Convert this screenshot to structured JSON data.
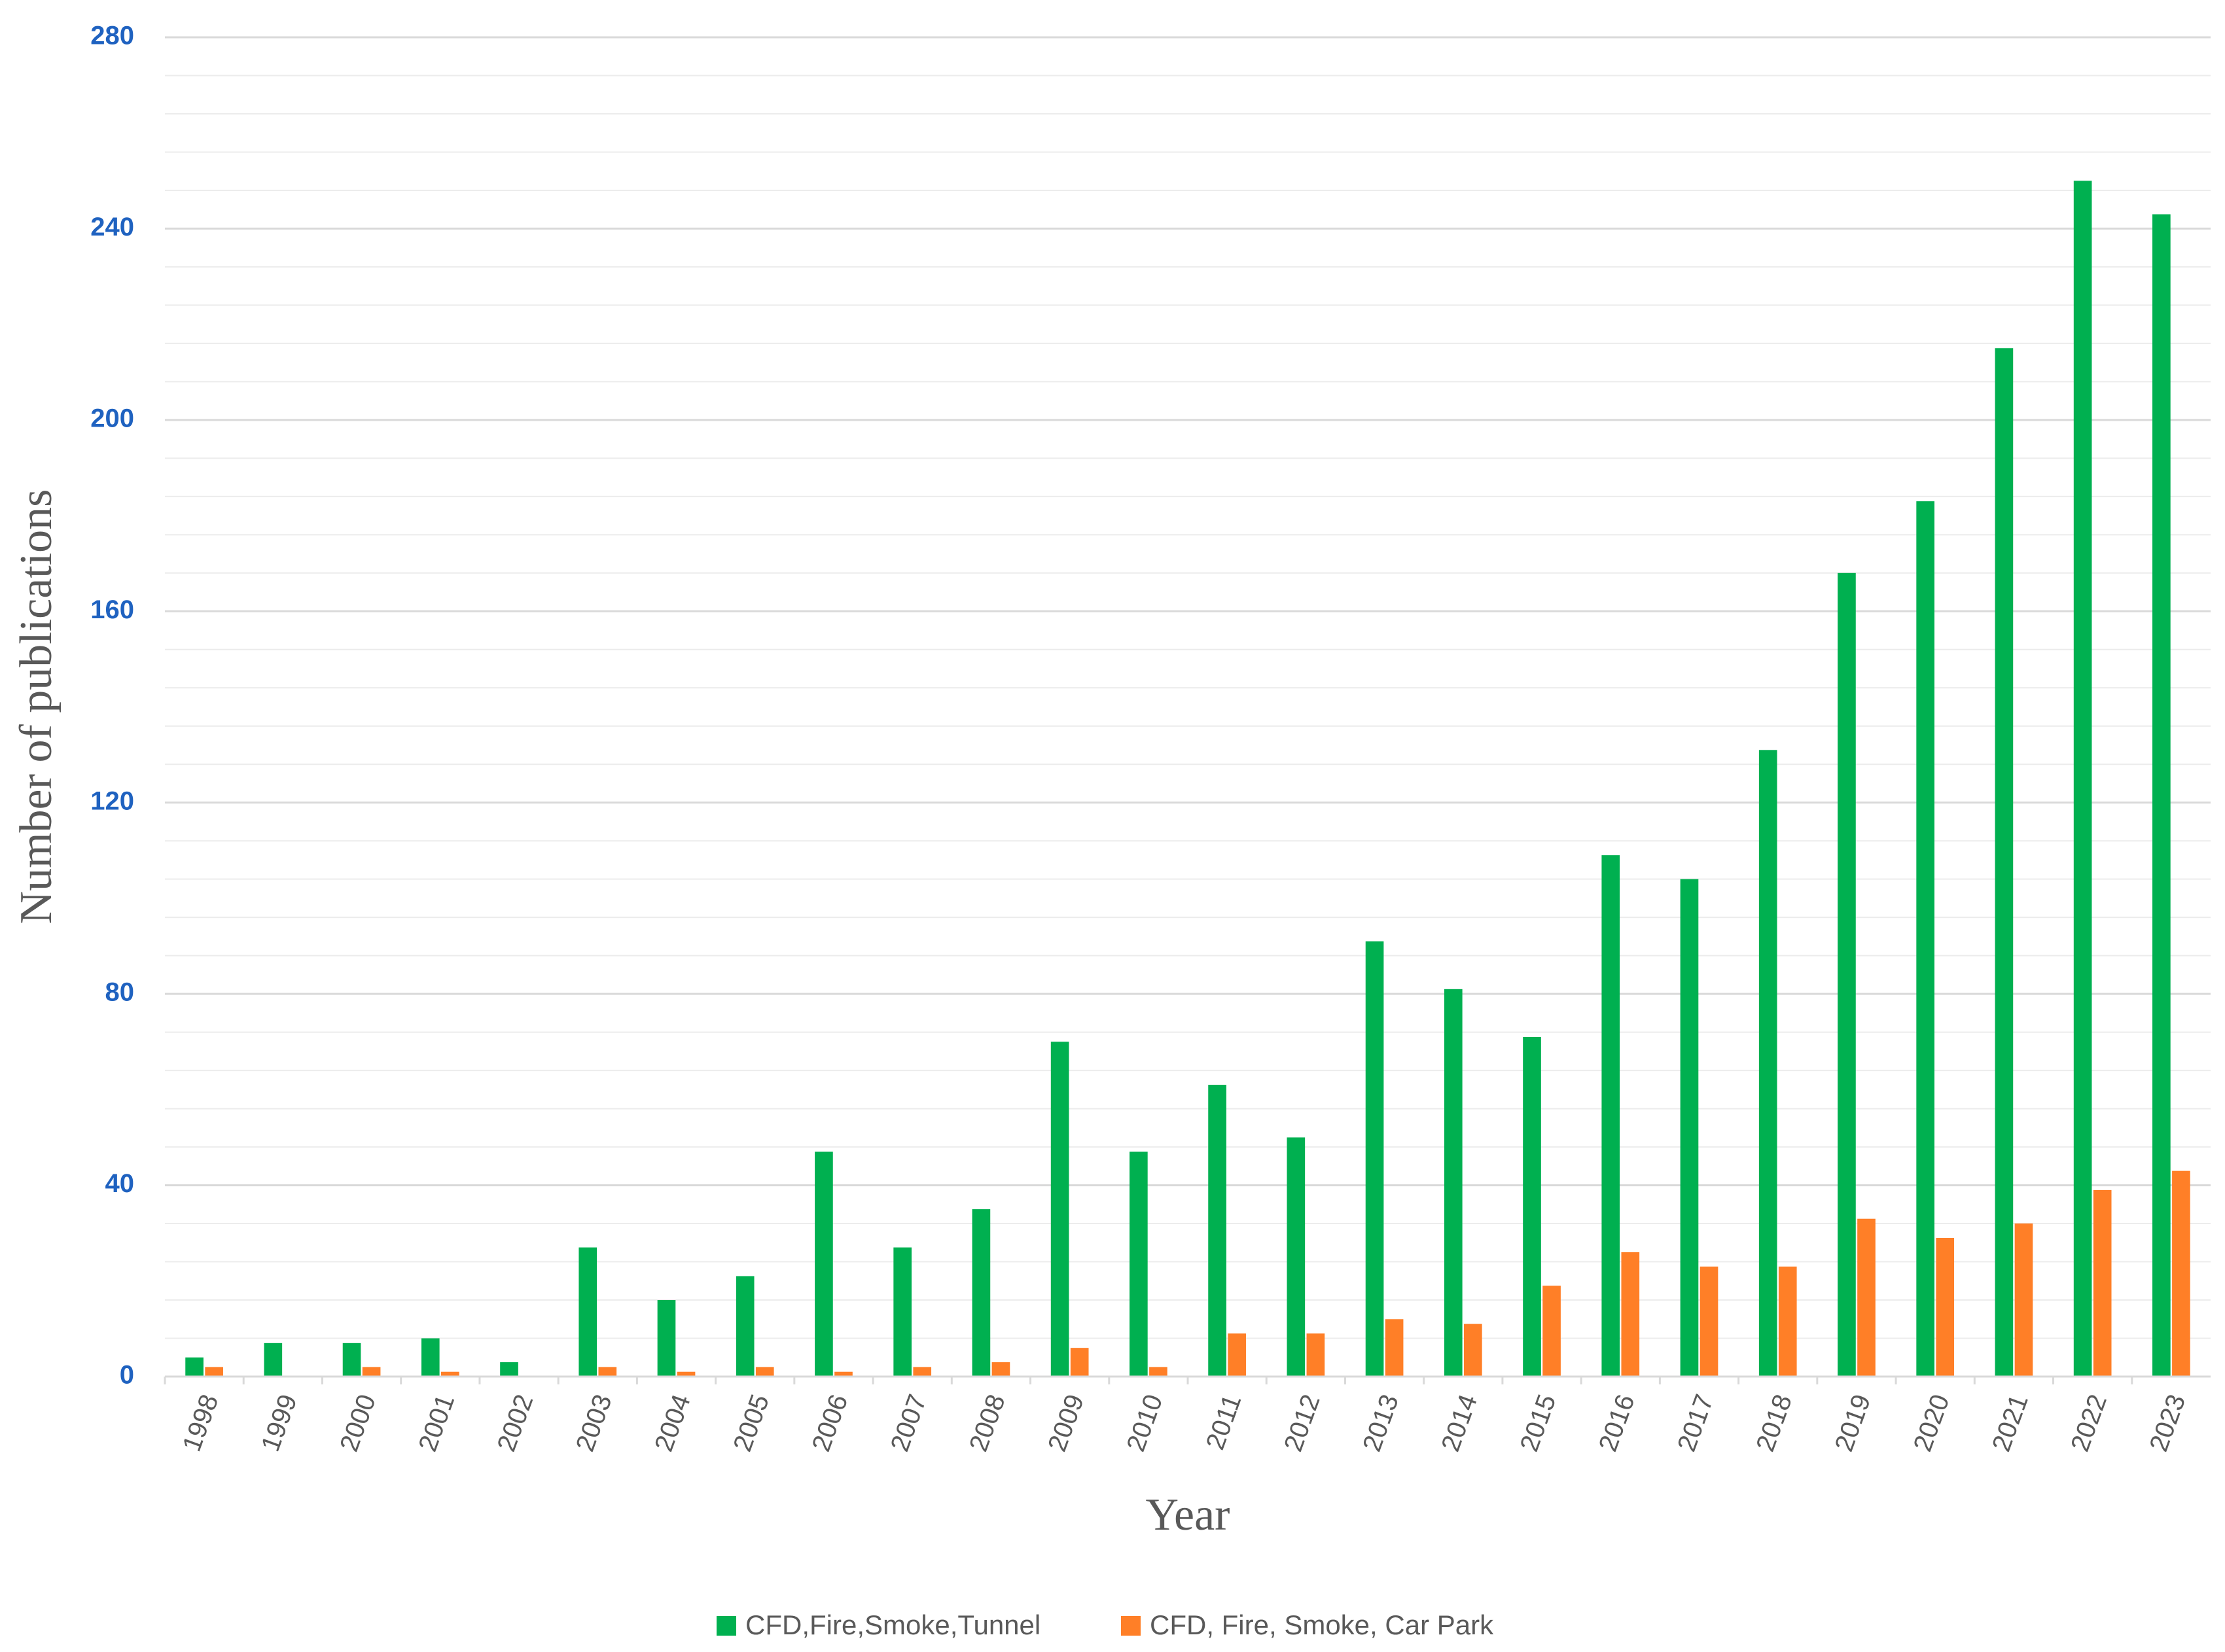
{
  "chart_data": {
    "type": "bar",
    "x_label": "Year",
    "y_label": "Number of publications",
    "categories": [
      "1998",
      "1999",
      "2000",
      "2001",
      "2002",
      "2003",
      "2004",
      "2005",
      "2006",
      "2007",
      "2008",
      "2009",
      "2010",
      "2011",
      "2012",
      "2013",
      "2014",
      "2015",
      "2016",
      "2017",
      "2018",
      "2019",
      "2020",
      "2021",
      "2022",
      "2023"
    ],
    "series": [
      {
        "name": "CFD,Fire,Smoke,Tunnel",
        "color": "#00b050",
        "values": [
          4,
          7,
          7,
          8,
          3,
          27,
          16,
          21,
          47,
          27,
          35,
          70,
          47,
          61,
          50,
          91,
          81,
          71,
          109,
          104,
          131,
          168,
          183,
          215,
          250,
          243
        ]
      },
      {
        "name": "CFD, Fire, Smoke, Car Park",
        "color": "#ff7f27",
        "values": [
          2,
          0,
          2,
          1,
          0,
          2,
          1,
          2,
          1,
          2,
          3,
          6,
          2,
          9,
          9,
          12,
          11,
          19,
          26,
          23,
          23,
          33,
          29,
          32,
          39,
          43
        ]
      }
    ],
    "ylim": [
      0,
      280
    ],
    "yticks": [
      0,
      40,
      80,
      120,
      160,
      200,
      240,
      280
    ],
    "grid": true,
    "legend": "bottom"
  }
}
